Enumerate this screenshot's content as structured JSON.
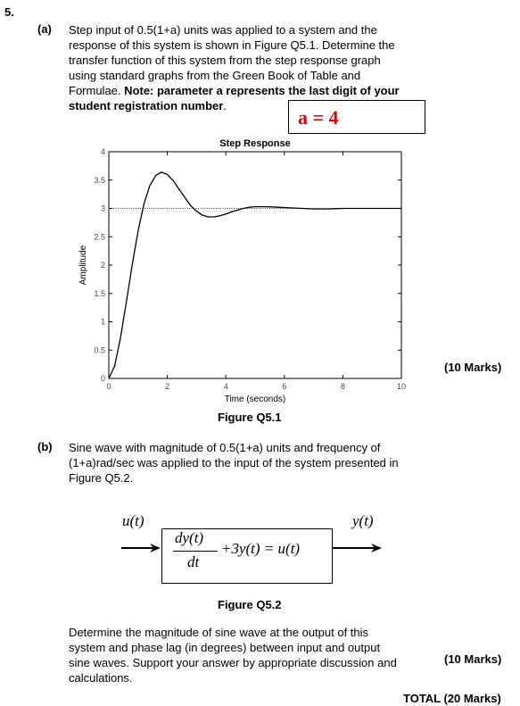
{
  "question_number": "5.",
  "part_a": {
    "label": "(a)",
    "lines": [
      "Step input of 0.5(1+a) units was applied to a system and the",
      "response of this system is shown in Figure Q5.1. Determine the",
      "transfer function of this system from the step response graph",
      "using standard graphs from the Green Book of Table and",
      "Formulae."
    ],
    "note_bold": "Note: parameter a represents the last digit of your",
    "note_bold_2": "student registration number",
    "note_end": ".",
    "a_value": "a = 4",
    "marks": "(10 Marks)",
    "figure_caption": "Figure Q5.1"
  },
  "chart_data": {
    "type": "line",
    "title": "Step Response",
    "xlabel": "Time (seconds)",
    "ylabel": "Amplitude",
    "xlim": [
      0,
      10
    ],
    "ylim": [
      0,
      4
    ],
    "x_ticks": [
      "0",
      "2",
      "4",
      "6",
      "8",
      "10"
    ],
    "y_ticks": [
      "0",
      "0.5",
      "1",
      "1.5",
      "2",
      "2.5",
      "3",
      "3.5",
      "4"
    ],
    "final_value": 3,
    "series": [
      {
        "x": [
          0,
          0.2,
          0.4,
          0.6,
          0.8,
          1.0,
          1.2,
          1.4,
          1.6,
          1.8,
          2.0,
          2.2,
          2.4,
          2.6,
          2.8,
          3.0,
          3.2,
          3.4,
          3.6,
          3.8,
          4.0,
          4.2,
          4.4,
          4.6,
          4.8,
          5.0,
          5.4,
          5.8,
          6.2,
          6.6,
          7.0,
          7.5,
          8.0,
          9.0,
          10.0
        ],
        "y": [
          0,
          0.22,
          0.72,
          1.35,
          2.0,
          2.6,
          3.08,
          3.4,
          3.58,
          3.64,
          3.6,
          3.49,
          3.34,
          3.19,
          3.05,
          2.95,
          2.88,
          2.85,
          2.85,
          2.87,
          2.9,
          2.94,
          2.97,
          3.0,
          3.02,
          3.03,
          3.03,
          3.02,
          3.01,
          3.0,
          2.99,
          2.99,
          3.0,
          3.0,
          3.0
        ]
      }
    ],
    "grid": false
  },
  "part_b": {
    "label": "(b)",
    "lines": [
      "Sine wave with magnitude of 0.5(1+a) units and frequency of",
      "(1+a)rad/sec was applied to the input of the system presented in",
      "Figure Q5.2."
    ],
    "input_label": "u(t)",
    "output_label": "y(t)",
    "equation_num": "dy(t)",
    "equation_den": "dt",
    "equation_rest": "+3y(t) = u(t)",
    "figure_caption": "Figure Q5.2",
    "question_lines": [
      "Determine the magnitude of sine wave at the output of this",
      "system and phase lag (in degrees) between input and output",
      "sine waves. Support your answer by appropriate discussion and",
      "calculations."
    ],
    "marks": "(10 Marks)"
  },
  "total": "TOTAL (20 Marks)"
}
